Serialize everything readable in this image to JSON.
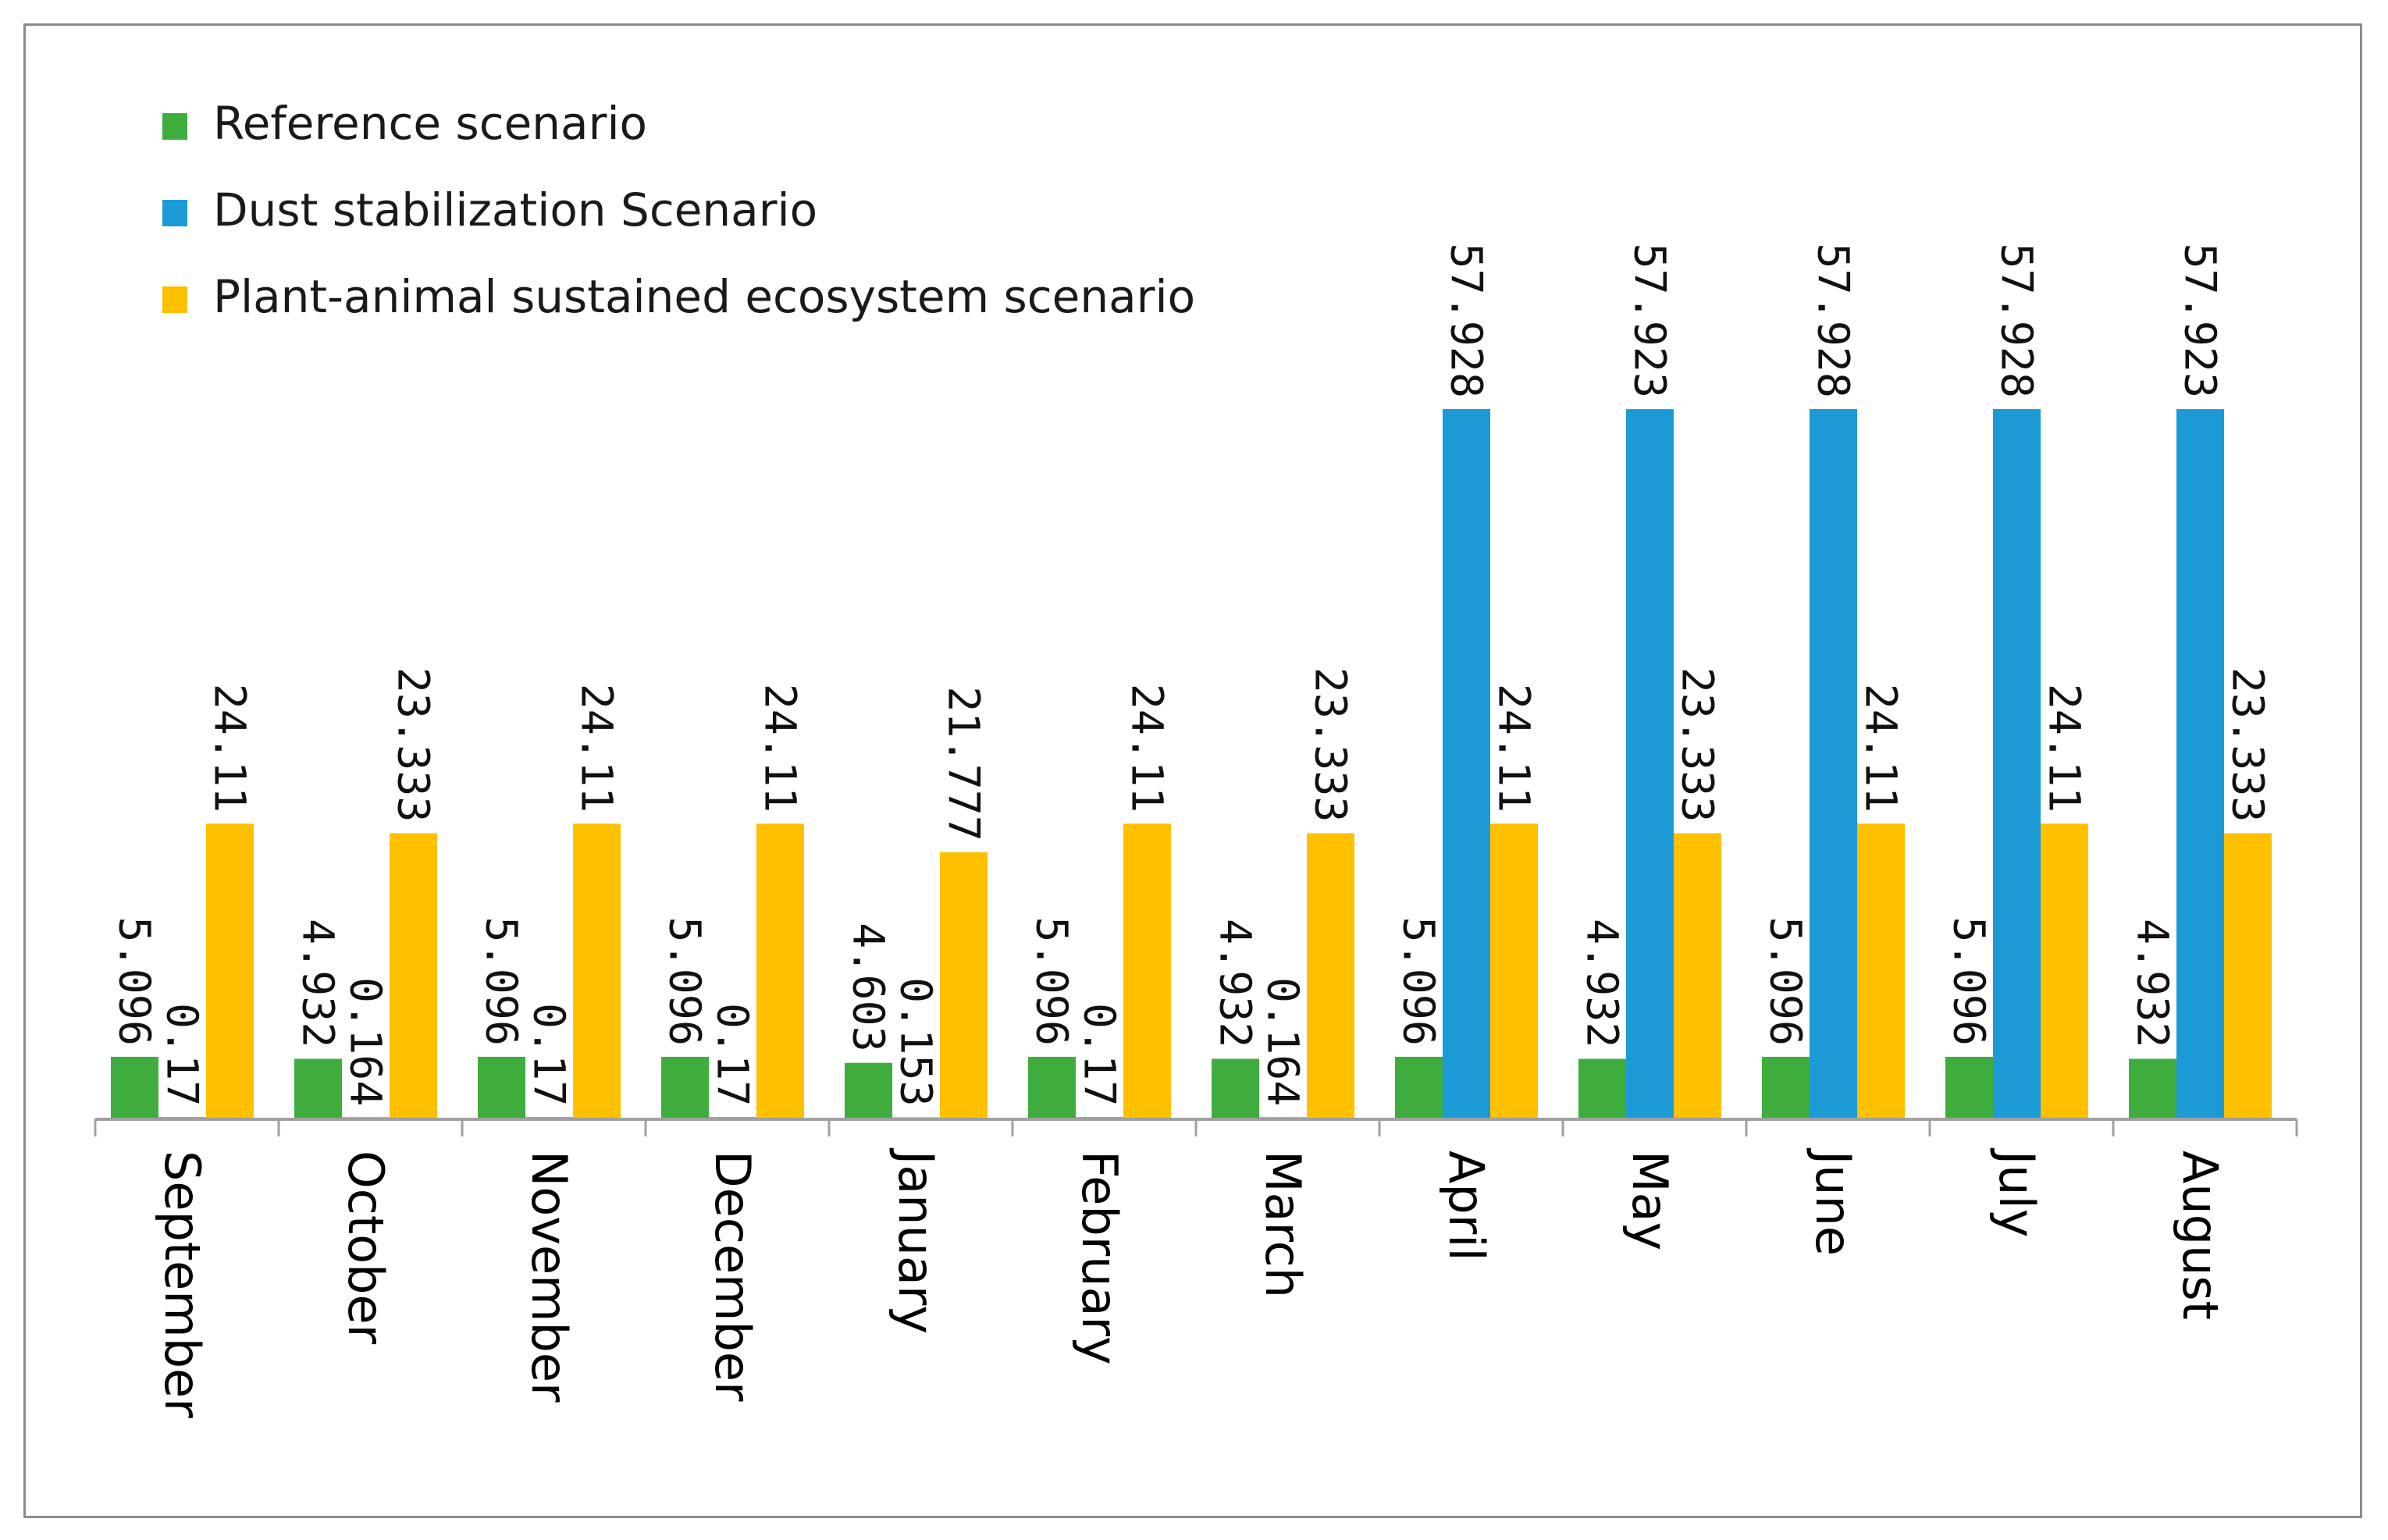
{
  "chart_data": {
    "type": "bar",
    "title": "",
    "xlabel": "",
    "ylabel": "",
    "ylim": [
      0,
      72
    ],
    "grid": false,
    "legend_position": "top-left",
    "categories": [
      "September",
      "October",
      "November",
      "December",
      "January",
      "February",
      "March",
      "April",
      "May",
      "June",
      "July",
      "August"
    ],
    "series": [
      {
        "name": "Reference scenario",
        "color": "#3ead3e",
        "values": [
          5.096,
          4.932,
          5.096,
          5.096,
          4.603,
          5.096,
          4.932,
          5.096,
          4.932,
          5.096,
          5.096,
          4.932
        ],
        "labels": [
          "5.096",
          "4.932",
          "5.096",
          "5.096",
          "4.603",
          "5.096",
          "4.932",
          "5.096",
          "4.932",
          "5.096",
          "5.096",
          "4.932"
        ]
      },
      {
        "name": "Dust stabilization Scenario",
        "color": "#1c9ad6",
        "values": [
          0.17,
          0.164,
          0.17,
          0.17,
          0.153,
          0.17,
          0.164,
          57.928,
          57.923,
          57.928,
          57.928,
          57.923
        ],
        "labels": [
          "0.17",
          "0.164",
          "0.17",
          "0.17",
          "0.153",
          "0.17",
          "0.164",
          "57.928",
          "57.923",
          "57.928",
          "57.928",
          "57.923"
        ]
      },
      {
        "name": "Plant-animal sustained ecosystem scenario",
        "color": "#ffc000",
        "values": [
          24.11,
          23.333,
          24.11,
          24.11,
          21.777,
          24.11,
          23.333,
          24.11,
          23.333,
          24.11,
          24.11,
          23.333
        ],
        "labels": [
          "24.11",
          "23.333",
          "24.11",
          "24.11",
          "21.777",
          "24.11",
          "23.333",
          "24.11",
          "23.333",
          "24.11",
          "24.11",
          "23.333"
        ]
      }
    ],
    "axis_color": "#a0a0a0"
  }
}
